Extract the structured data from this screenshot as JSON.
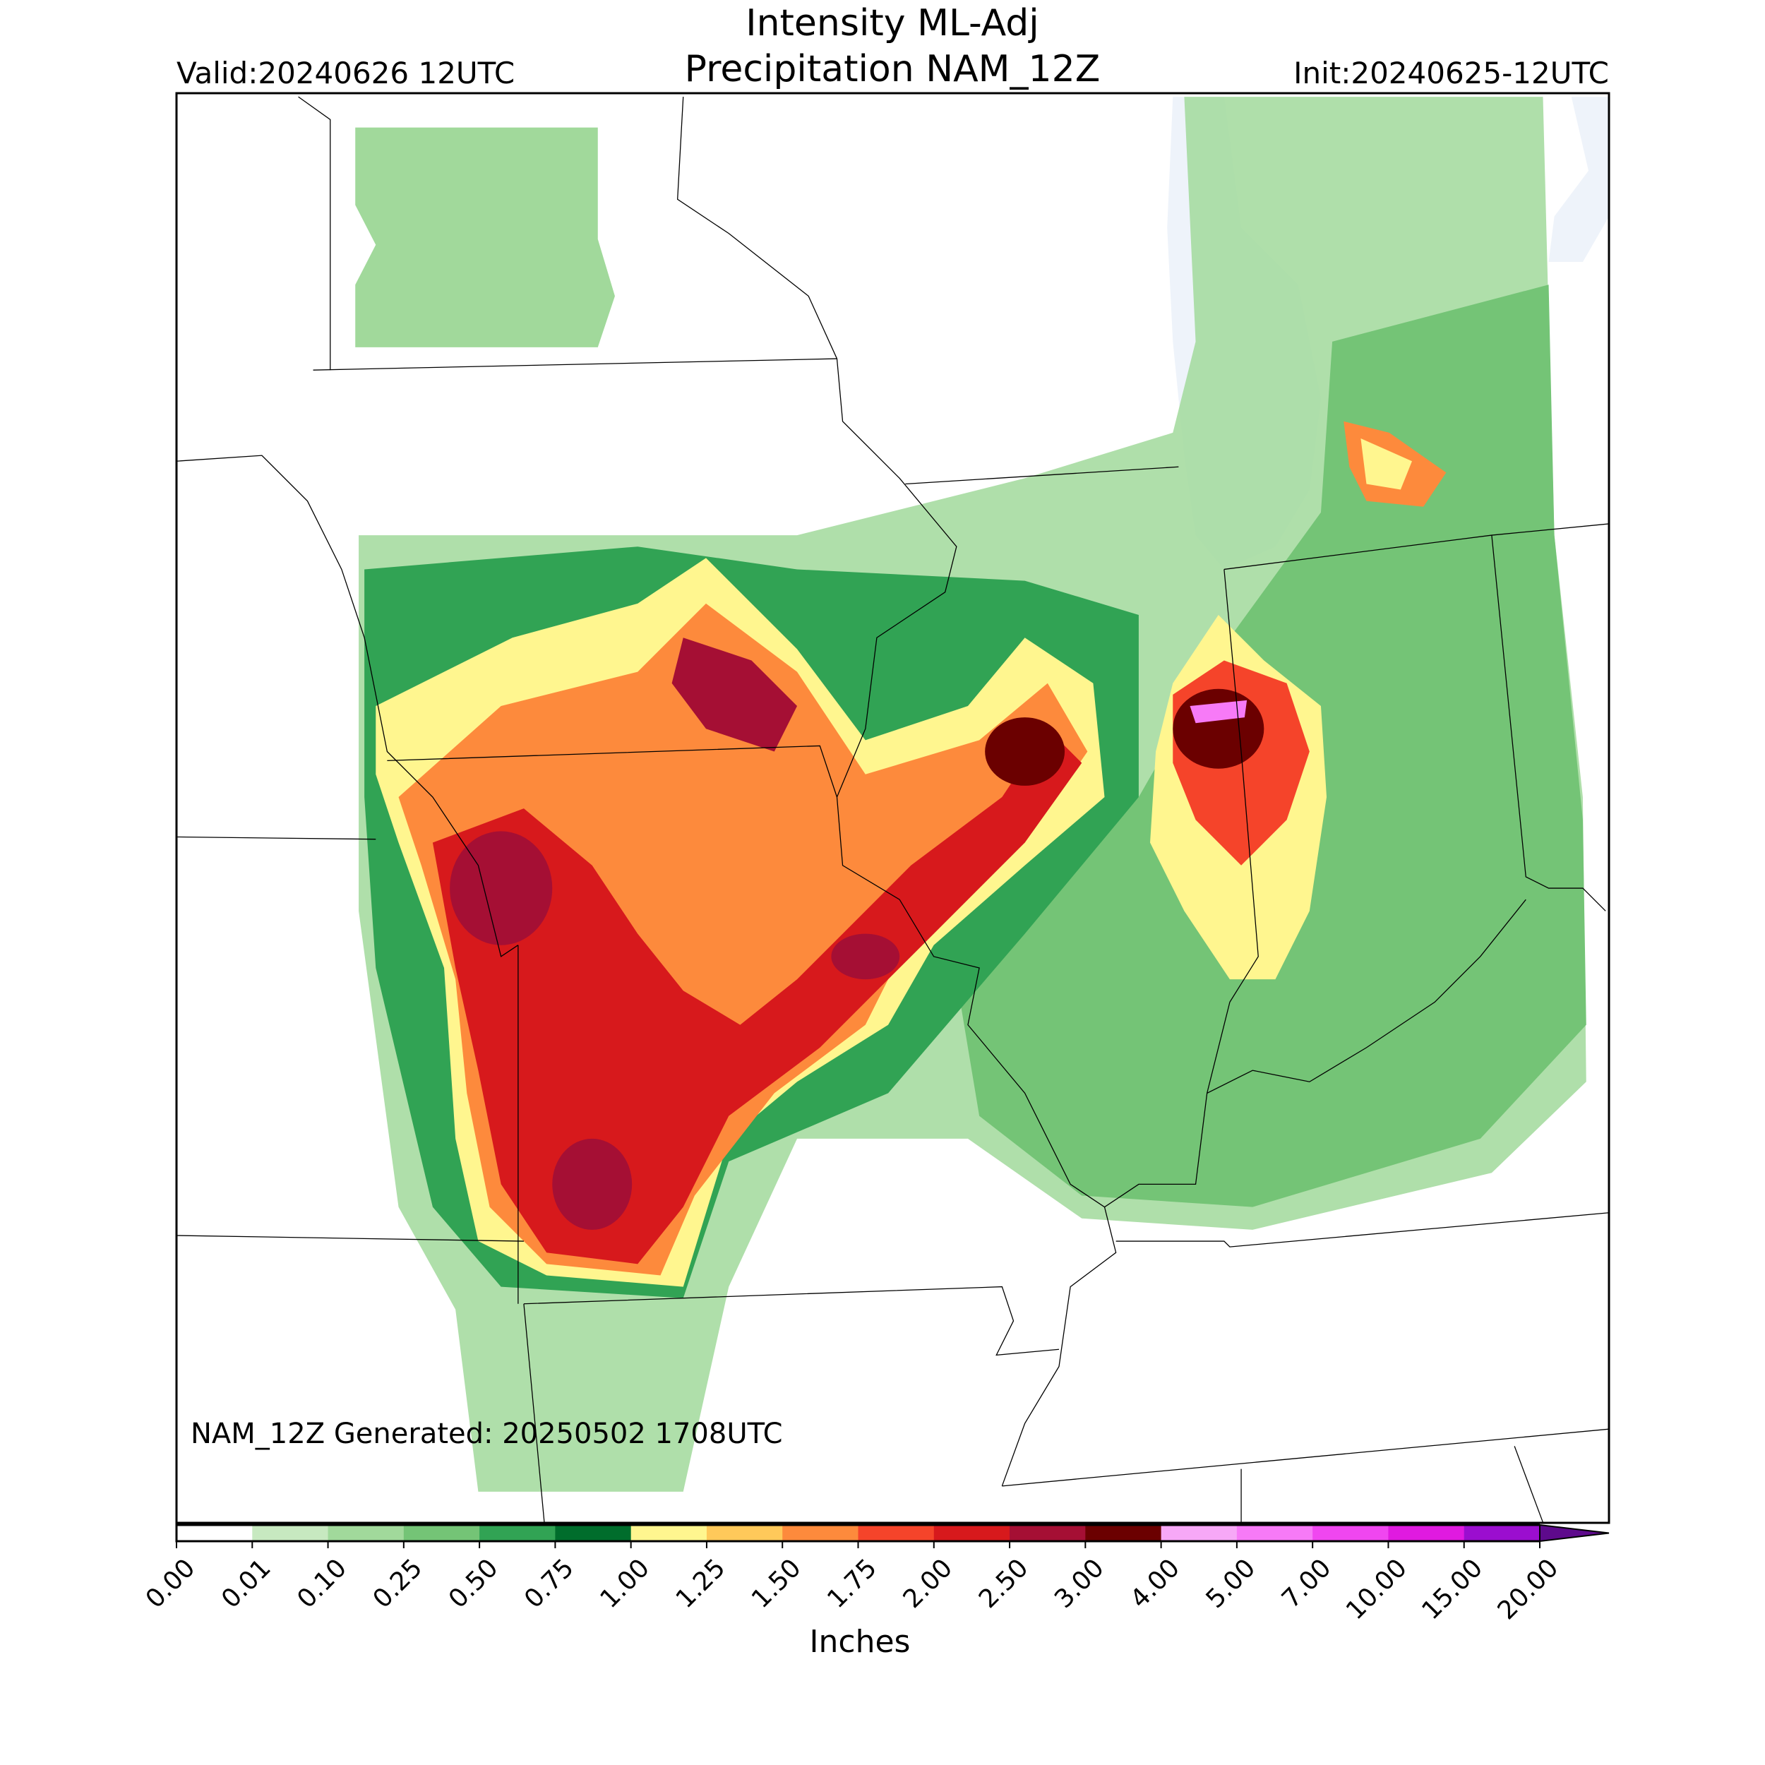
{
  "header": {
    "title": [
      "Intensity ML-Adj",
      "Precipitation NAM_12Z"
    ],
    "valid": "Valid:20240626 12UTC",
    "init": "Init:20240625-12UTC"
  },
  "annotation": "NAM_12Z Generated: 20250502 1708UTC",
  "colorbar": {
    "label": "Inches",
    "ticks": [
      {
        "value": 0,
        "label": "0.00"
      },
      {
        "value": 0.01,
        "label": "0.01"
      },
      {
        "value": 0.1,
        "label": "0.10"
      },
      {
        "value": 0.25,
        "label": "0.25"
      },
      {
        "value": 0.5,
        "label": "0.50"
      },
      {
        "value": 0.75,
        "label": "0.75"
      },
      {
        "value": 1,
        "label": "1.00"
      },
      {
        "value": 1.25,
        "label": "1.25"
      },
      {
        "value": 1.5,
        "label": "1.50"
      },
      {
        "value": 1.75,
        "label": "1.75"
      },
      {
        "value": 2,
        "label": "2.00"
      },
      {
        "value": 2.5,
        "label": "2.50"
      },
      {
        "value": 3,
        "label": "3.00"
      },
      {
        "value": 4,
        "label": "4.00"
      },
      {
        "value": 5,
        "label": "5.00"
      },
      {
        "value": 7,
        "label": "7.00"
      },
      {
        "value": 10,
        "label": "10.00"
      },
      {
        "value": 15,
        "label": "15.00"
      },
      {
        "value": 20,
        "label": "20.00"
      }
    ],
    "colors": [
      "#ffffff",
      "#c7e9c0",
      "#a1d99b",
      "#74c476",
      "#31a354",
      "#006d2c",
      "#fff68f",
      "#ffc95a",
      "#fd8a3c",
      "#f5442a",
      "#d7191c",
      "#a50f34",
      "#6b0000",
      "#f7a8f7",
      "#f77af7",
      "#f046f0",
      "#e01ae0",
      "#9b0ecf"
    ],
    "over_color": "#5e0a8c"
  }
}
